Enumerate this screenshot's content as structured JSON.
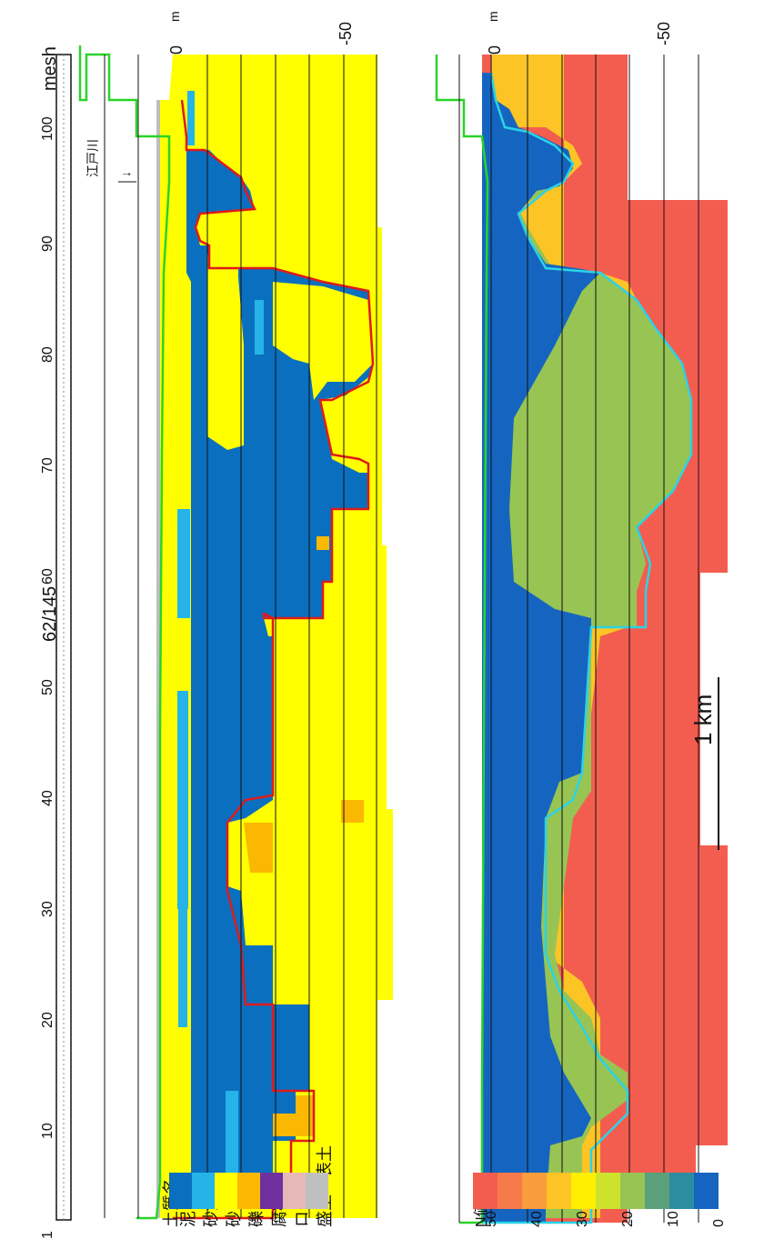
{
  "page_label": "62/145",
  "mesh_label": "mesh",
  "mesh_ticks": [
    "1",
    "10",
    "20",
    "30",
    "40",
    "50",
    "60",
    "70",
    "80",
    "90",
    "100"
  ],
  "river_label": "江戸川",
  "river_arrow": "↓",
  "top_depth": {
    "zero": "0",
    "unit": "m",
    "minus50": "-50"
  },
  "bottom_depth": {
    "zero": "0",
    "unit": "m",
    "minus50": "-50"
  },
  "scale_bar": "1 km",
  "soil_legend": {
    "title": "土質名",
    "items": [
      {
        "label": "泥",
        "color": "#0b6fbf"
      },
      {
        "label": "砂泥",
        "color": "#25b3e8"
      },
      {
        "label": "砂",
        "color": "#ffff00"
      },
      {
        "label": "礫",
        "color": "#fbb800"
      },
      {
        "label": "腐植土",
        "color": "#7030a0"
      },
      {
        "label": "ローム",
        "color": "#e6b8b8"
      },
      {
        "label": "盛土・表土",
        "color": "#bfbfbf"
      }
    ]
  },
  "n_legend": {
    "title": "N値",
    "ticks": [
      "50",
      "40",
      "30",
      "20",
      "10",
      "0"
    ],
    "colors": [
      "#f35d50",
      "#f67a48",
      "#f99c3c",
      "#fdc426",
      "#ffef00",
      "#cde22c",
      "#98c454",
      "#5aa07a",
      "#2c8ca0",
      "#1565c0"
    ]
  },
  "colors": {
    "mud": "#0b6fbf",
    "sandy_mud": "#25b3e8",
    "sand": "#ffff00",
    "gravel": "#fbb800",
    "fill": "#bfbfbf",
    "boundary_red": "#e01a1a",
    "boundary_cyan": "#2bd3e6",
    "ground_green": "#29d429",
    "n_high": "#f35d50",
    "n_low": "#1565c0"
  }
}
